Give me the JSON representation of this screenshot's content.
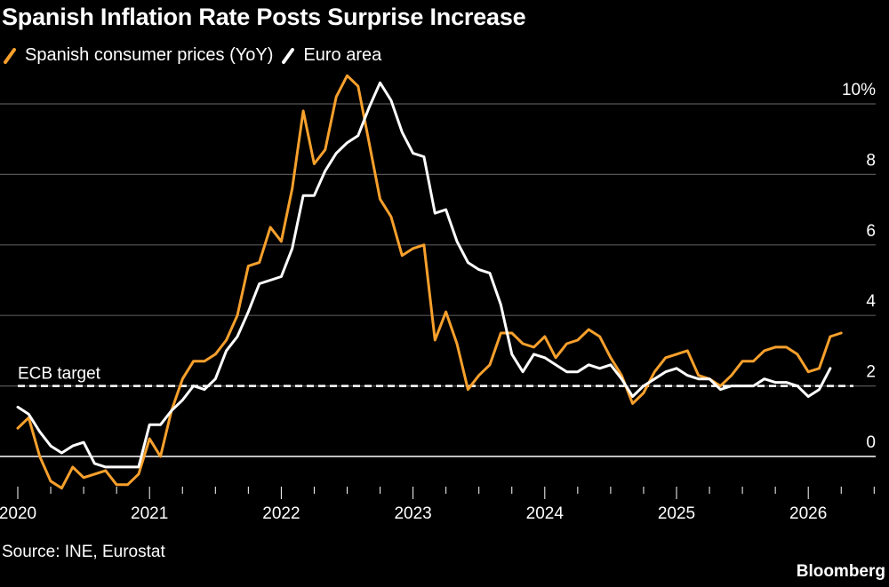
{
  "header": {
    "title": "Spanish Inflation Rate Posts Surprise Increase"
  },
  "footer": {
    "source": "Source: INE, Eurostat",
    "brand": "Bloomberg"
  },
  "colors": {
    "background": "#000000",
    "spain": "#f7a02c",
    "euro": "#ffffff",
    "grid": "#555555"
  },
  "chart_data": {
    "type": "line",
    "title": "Spanish Inflation Rate Posts Surprise Increase",
    "xlabel": "",
    "ylabel": "",
    "x_start": "2020-01",
    "x_frequency": "monthly",
    "xlim": [
      2020.0,
      2026.5
    ],
    "ylim": [
      -1.0,
      10.6
    ],
    "y_ticks": [
      {
        "value": 10,
        "label": "10%"
      },
      {
        "value": 8,
        "label": "8"
      },
      {
        "value": 6,
        "label": "6"
      },
      {
        "value": 4,
        "label": "4"
      },
      {
        "value": 2,
        "label": "2"
      },
      {
        "value": 0,
        "label": "0"
      }
    ],
    "x_ticks": [
      {
        "value": 2020,
        "label": "2020"
      },
      {
        "value": 2021,
        "label": "2021"
      },
      {
        "value": 2022,
        "label": "2022"
      },
      {
        "value": 2023,
        "label": "2023"
      },
      {
        "value": 2024,
        "label": "2024"
      },
      {
        "value": 2025,
        "label": "2025"
      },
      {
        "value": 2026,
        "label": "2026"
      }
    ],
    "grid": true,
    "legend": "top-left",
    "reference_line": {
      "value": 2.0,
      "label": "ECB target",
      "style": "dashed"
    },
    "series": [
      {
        "name": "Spanish consumer prices (YoY)",
        "color": "#f7a02c",
        "values": [
          0.8,
          1.1,
          0.0,
          -0.7,
          -0.9,
          -0.3,
          -0.6,
          -0.5,
          -0.4,
          -0.8,
          -0.8,
          -0.5,
          0.5,
          0.0,
          1.3,
          2.2,
          2.7,
          2.7,
          2.9,
          3.3,
          4.0,
          5.4,
          5.5,
          6.5,
          6.1,
          7.6,
          9.8,
          8.3,
          8.7,
          10.2,
          10.8,
          10.5,
          8.9,
          7.3,
          6.8,
          5.7,
          5.9,
          6.0,
          3.3,
          4.1,
          3.2,
          1.9,
          2.3,
          2.6,
          3.5,
          3.5,
          3.2,
          3.1,
          3.4,
          2.8,
          3.2,
          3.3,
          3.6,
          3.4,
          2.8,
          2.3,
          1.5,
          1.8,
          2.4,
          2.8,
          2.9,
          3.0,
          2.3,
          2.2,
          2.0,
          2.3,
          2.7,
          2.7,
          3.0,
          3.1,
          3.1,
          2.9,
          2.4,
          2.5,
          3.4,
          3.5
        ]
      },
      {
        "name": "Euro area",
        "color": "#ffffff",
        "values": [
          1.4,
          1.2,
          0.7,
          0.3,
          0.1,
          0.3,
          0.4,
          -0.2,
          -0.3,
          -0.3,
          -0.3,
          -0.3,
          0.9,
          0.9,
          1.3,
          1.6,
          2.0,
          1.9,
          2.2,
          3.0,
          3.4,
          4.1,
          4.9,
          5.0,
          5.1,
          5.9,
          7.4,
          7.4,
          8.1,
          8.6,
          8.9,
          9.1,
          9.9,
          10.6,
          10.1,
          9.2,
          8.6,
          8.5,
          6.9,
          7.0,
          6.1,
          5.5,
          5.3,
          5.2,
          4.3,
          2.9,
          2.4,
          2.9,
          2.8,
          2.6,
          2.4,
          2.4,
          2.6,
          2.5,
          2.6,
          2.2,
          1.7,
          2.0,
          2.2,
          2.4,
          2.5,
          2.3,
          2.2,
          2.2,
          1.9,
          2.0,
          2.0,
          2.0,
          2.2,
          2.1,
          2.1,
          2.0,
          1.7,
          1.9,
          2.5
        ]
      }
    ]
  }
}
